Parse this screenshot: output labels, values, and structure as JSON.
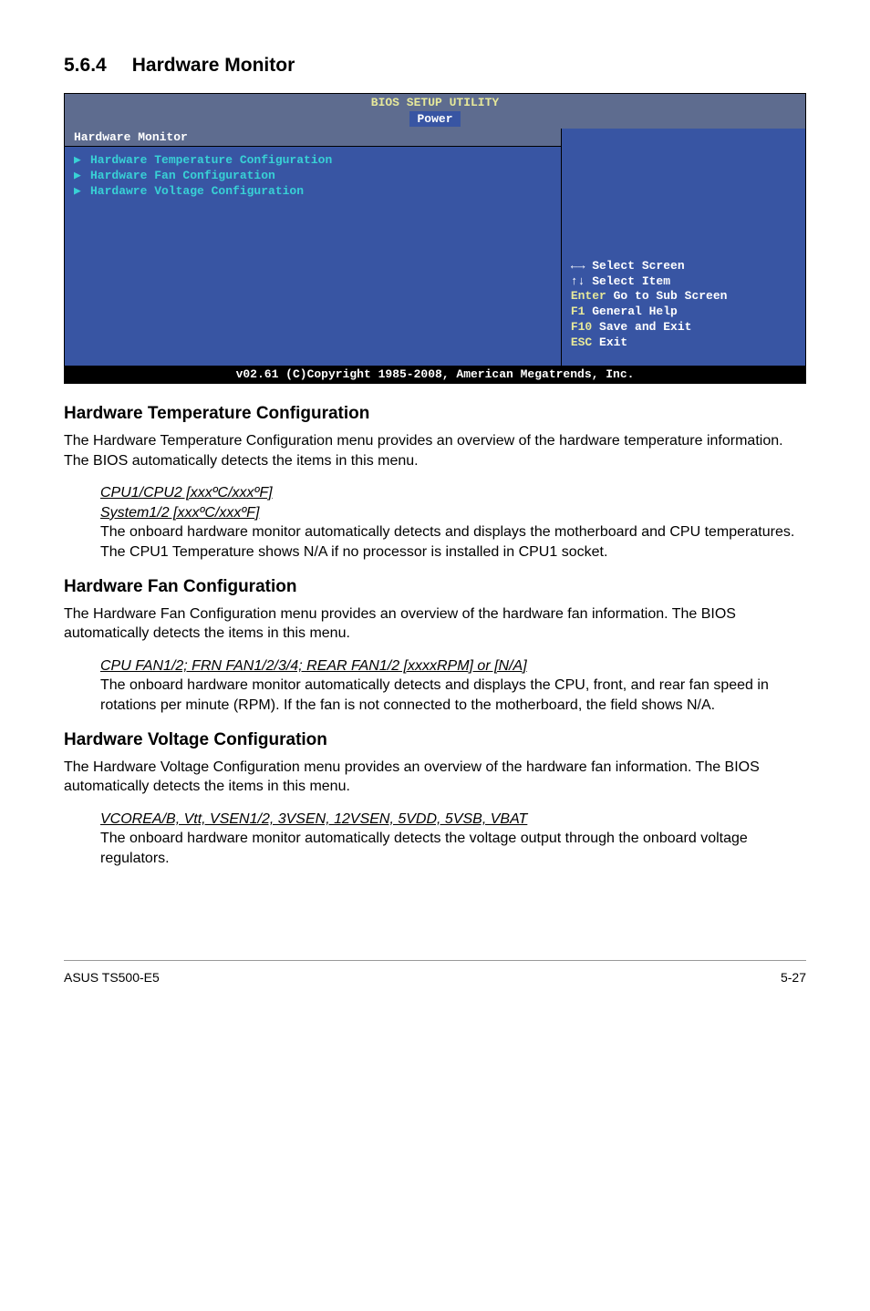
{
  "section": {
    "number": "5.6.4",
    "title": "Hardware Monitor"
  },
  "bios": {
    "title": "BIOS SETUP UTILITY",
    "tab": "Power",
    "subheader": "Hardware Monitor",
    "options": [
      "Hardware Temperature Configuration",
      "Hardware Fan Configuration",
      "Hardawre Voltage Configuration"
    ],
    "help": {
      "l1": "←→   Select Screen",
      "l2": "↑↓   Select Item",
      "l3": "Enter Go to Sub Screen",
      "l4": "F1   General Help",
      "l5": "F10  Save and Exit",
      "l6": "ESC  Exit"
    },
    "footer": "v02.61 (C)Copyright 1985-2008, American Megatrends, Inc."
  },
  "sub1": {
    "heading": "Hardware Temperature Configuration",
    "para": "The Hardware Temperature Configuration menu provides an overview of the hardware temperature information. The BIOS automatically detects the items in this menu.",
    "item1": "CPU1/CPU2 [xxxºC/xxxºF]",
    "item2": "System1/2 [xxxºC/xxxºF]",
    "desc": "The onboard hardware monitor automatically detects and displays the motherboard and CPU temperatures. The CPU1 Temperature shows N/A if no processor is installed in CPU1 socket."
  },
  "sub2": {
    "heading": "Hardware Fan Configuration",
    "para": "The Hardware Fan Configuration menu provides an overview of the hardware fan information. The BIOS automatically detects the items in this menu.",
    "item1": "CPU FAN1/2; FRN FAN1/2/3/4; REAR FAN1/2 [xxxxRPM] or [N/A]",
    "desc": "The onboard hardware monitor automatically detects and displays the CPU, front, and rear fan speed in rotations per minute (RPM). If the fan is not connected to the motherboard, the field shows N/A."
  },
  "sub3": {
    "heading": "Hardware Voltage Configuration",
    "para": "The Hardware Voltage Configuration menu provides an overview of the hardware fan information. The BIOS automatically detects the items in this menu.",
    "item1": "VCOREA/B, Vtt, VSEN1/2, 3VSEN, 12VSEN, 5VDD, 5VSB, VBAT",
    "desc": "The onboard hardware monitor automatically detects the voltage output through the onboard voltage regulators."
  },
  "footer": {
    "left": "ASUS TS500-E5",
    "right": "5-27"
  }
}
